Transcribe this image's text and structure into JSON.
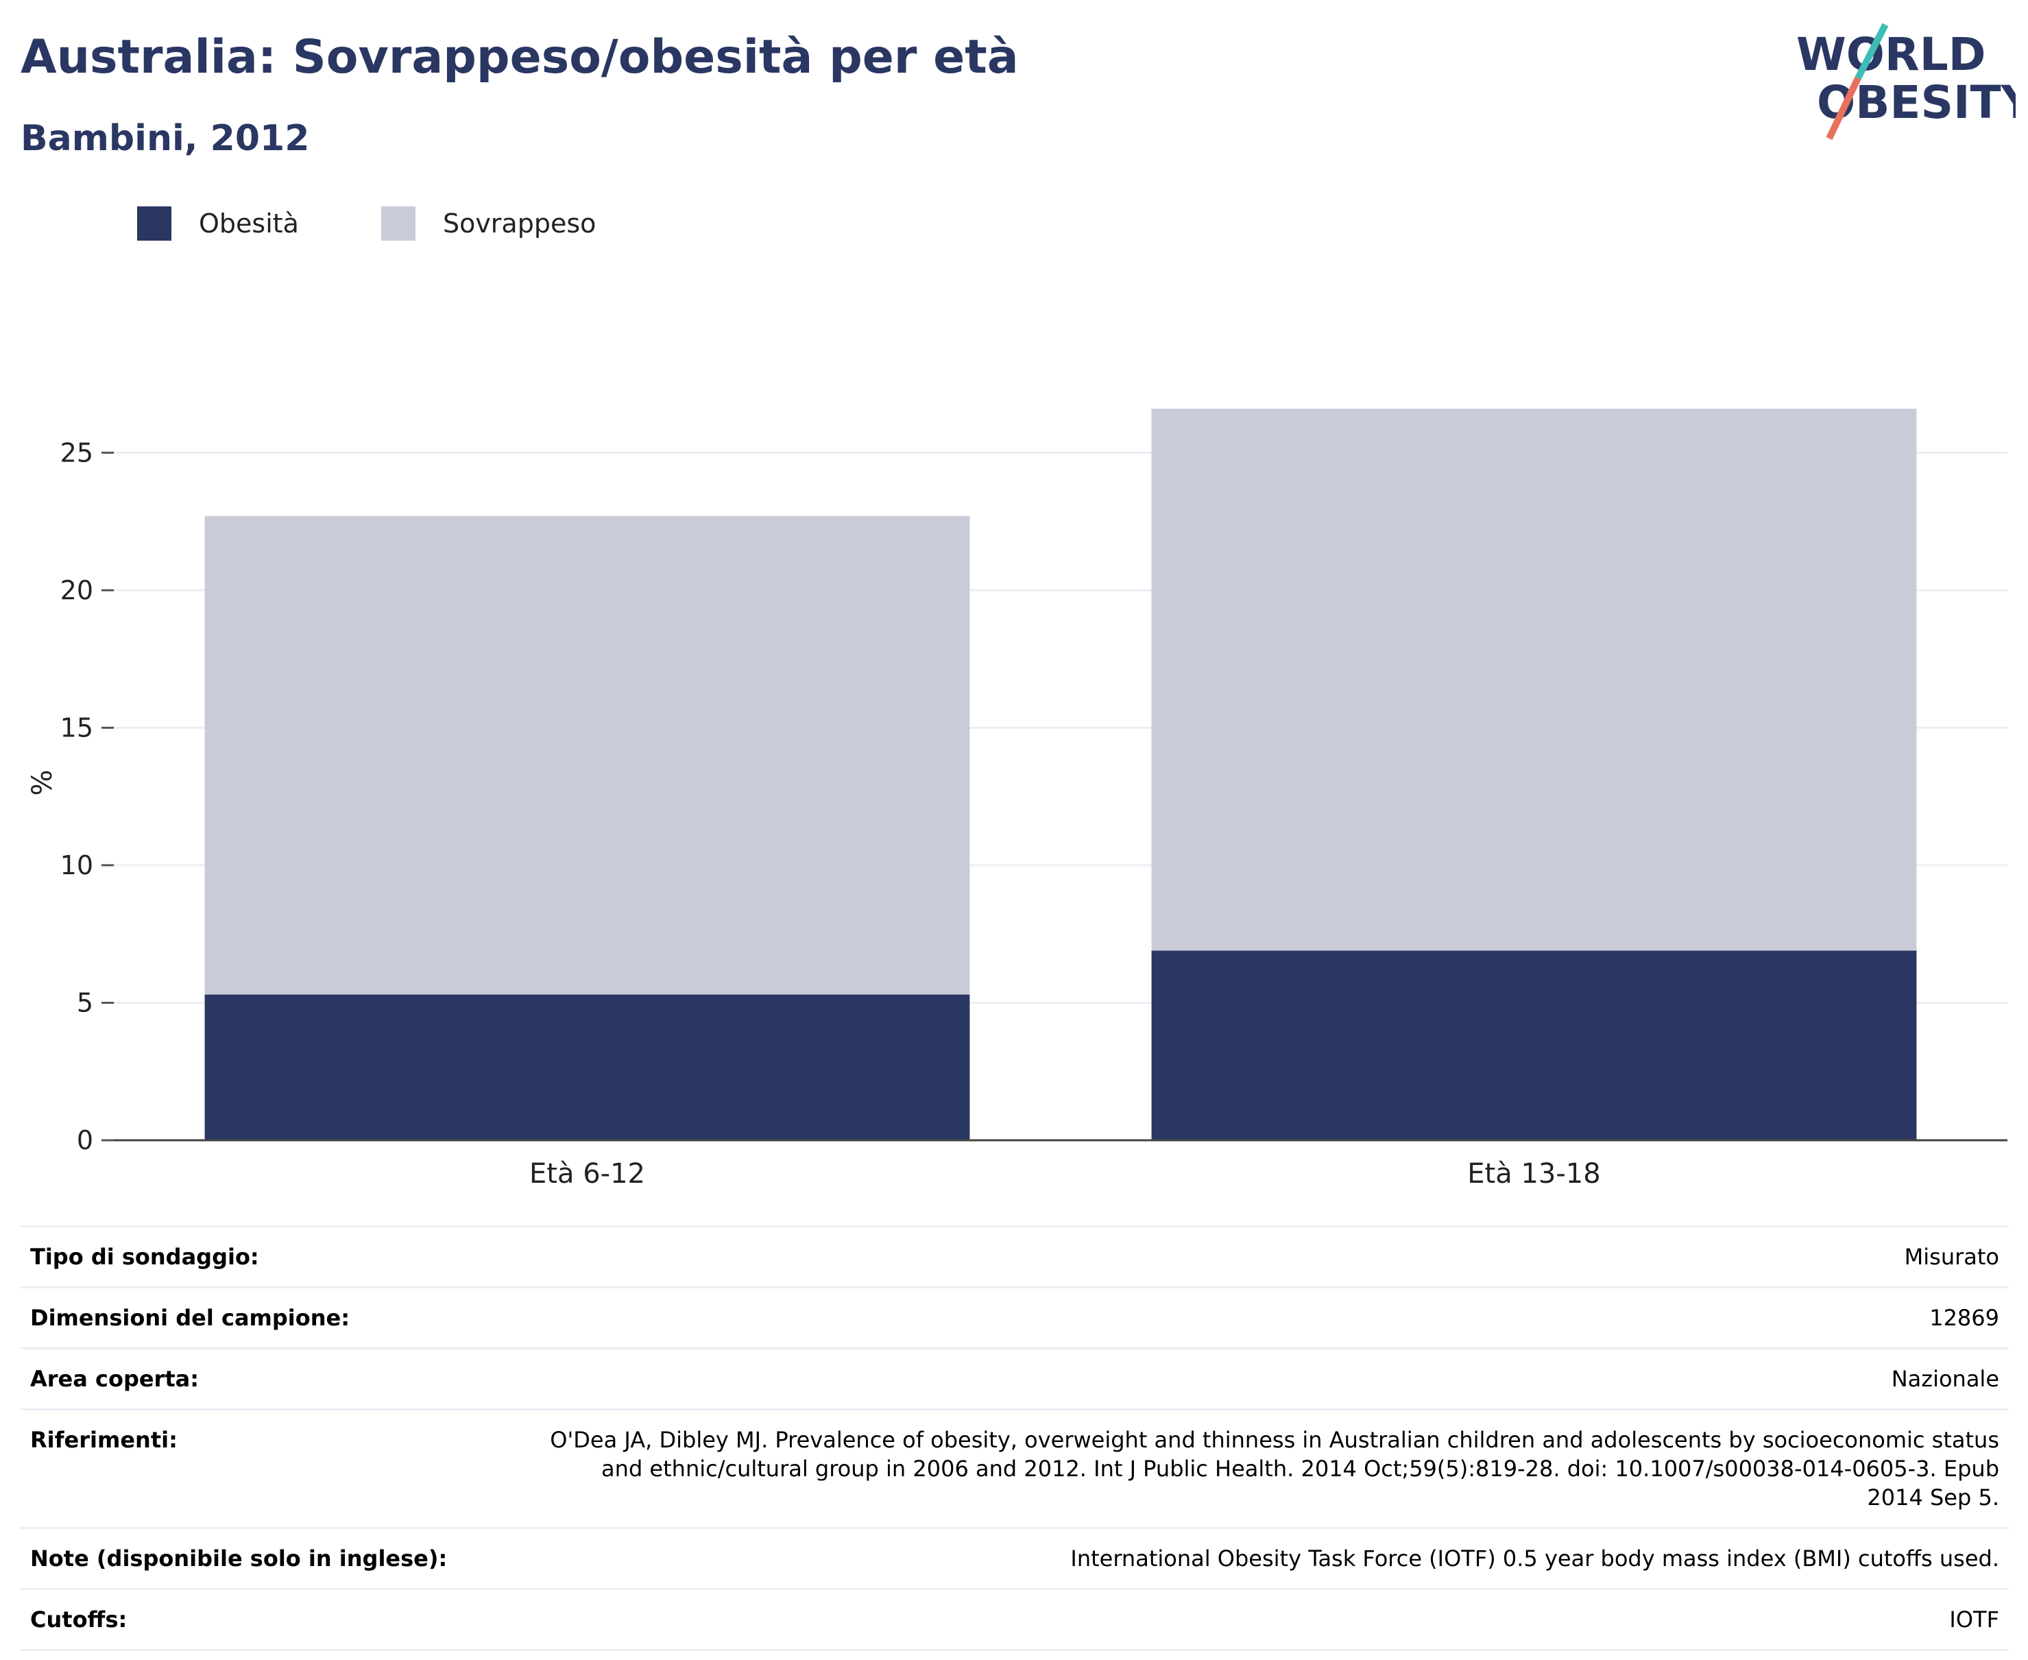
{
  "header": {
    "title": "Australia: Sovrappeso/obesità per età",
    "subtitle": "Bambini, 2012"
  },
  "logo": {
    "line1": "WORLD",
    "line2": "OBESITY",
    "slash_colors": [
      "#3dbdb5",
      "#e8705d"
    ]
  },
  "legend": [
    {
      "label": "Obesità",
      "color": "#2a3763"
    },
    {
      "label": "Sovrappeso",
      "color": "#c9ccd8"
    }
  ],
  "chart_data": {
    "type": "bar",
    "stacked": true,
    "categories": [
      "Età 6-12",
      "Età 13-18"
    ],
    "series": [
      {
        "name": "Obesità",
        "values": [
          5.3,
          6.9
        ],
        "color": "#2a3763"
      },
      {
        "name": "Sovrappeso",
        "values": [
          17.4,
          19.7
        ],
        "color": "#c9ccd8"
      }
    ],
    "ylabel": "%",
    "ylim": [
      0,
      27.5
    ],
    "yticks": [
      0,
      5,
      10,
      15,
      20,
      25
    ],
    "grid": true,
    "legend_position": "top-left"
  },
  "meta": [
    {
      "label": "Tipo di sondaggio:",
      "value": "Misurato"
    },
    {
      "label": "Dimensioni del campione:",
      "value": "12869"
    },
    {
      "label": "Area coperta:",
      "value": "Nazionale"
    },
    {
      "label": "Riferimenti:",
      "value": "O'Dea JA, Dibley MJ. Prevalence of obesity, overweight and thinness in Australian children and adolescents by socioeconomic status and ethnic/cultural group in 2006 and 2012. Int J Public Health. 2014 Oct;59(5):819-28. doi: 10.1007/s00038-014-0605-3. Epub 2014 Sep 5."
    },
    {
      "label": "Note (disponibile solo in inglese):",
      "value": "International Obesity Task Force (IOTF) 0.5 year body mass index (BMI) cutoffs used."
    },
    {
      "label": "Cutoffs:",
      "value": "IOTF"
    }
  ]
}
